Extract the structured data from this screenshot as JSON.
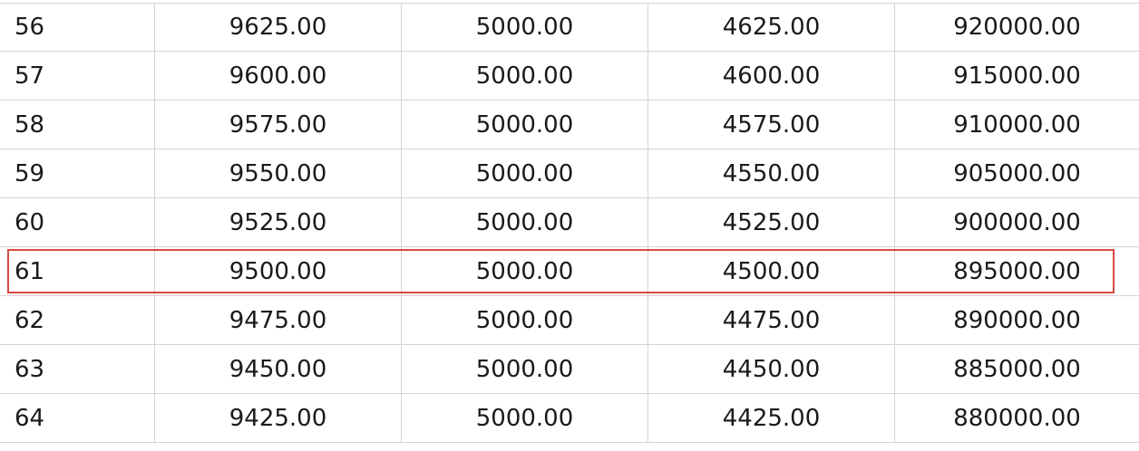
{
  "table": {
    "rows": [
      {
        "n": "56",
        "a": "9625.00",
        "b": "5000.00",
        "c": "4625.00",
        "d": "920000.00"
      },
      {
        "n": "57",
        "a": "9600.00",
        "b": "5000.00",
        "c": "4600.00",
        "d": "915000.00"
      },
      {
        "n": "58",
        "a": "9575.00",
        "b": "5000.00",
        "c": "4575.00",
        "d": "910000.00"
      },
      {
        "n": "59",
        "a": "9550.00",
        "b": "5000.00",
        "c": "4550.00",
        "d": "905000.00"
      },
      {
        "n": "60",
        "a": "9525.00",
        "b": "5000.00",
        "c": "4525.00",
        "d": "900000.00"
      },
      {
        "n": "61",
        "a": "9500.00",
        "b": "5000.00",
        "c": "4500.00",
        "d": "895000.00"
      },
      {
        "n": "62",
        "a": "9475.00",
        "b": "5000.00",
        "c": "4475.00",
        "d": "890000.00"
      },
      {
        "n": "63",
        "a": "9450.00",
        "b": "5000.00",
        "c": "4450.00",
        "d": "885000.00"
      },
      {
        "n": "64",
        "a": "9425.00",
        "b": "5000.00",
        "c": "4425.00",
        "d": "880000.00"
      }
    ],
    "highlight_color": "#d84a43",
    "grid_color": "#d4d4d4"
  }
}
